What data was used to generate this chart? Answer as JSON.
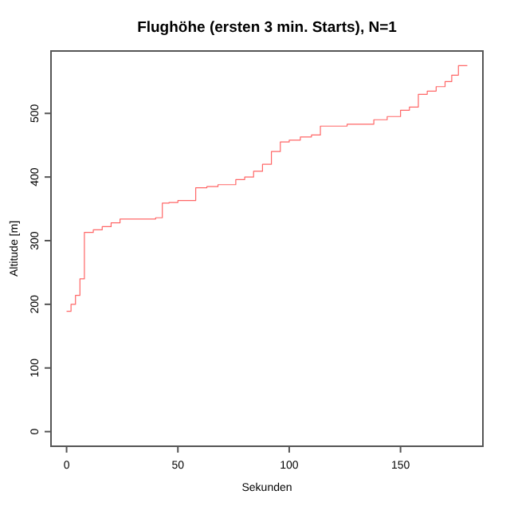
{
  "chart_data": {
    "type": "step",
    "title": "Flughöhe (ersten 3 min. Starts), N=1",
    "xlabel": "Sekunden",
    "ylabel": "Altitude [m]",
    "x": [
      0,
      2,
      4,
      6,
      8,
      12,
      16,
      20,
      24,
      30,
      36,
      40,
      43,
      46,
      50,
      54,
      58,
      63,
      68,
      72,
      76,
      80,
      84,
      88,
      92,
      96,
      100,
      105,
      110,
      114,
      120,
      126,
      132,
      138,
      144,
      150,
      154,
      158,
      162,
      166,
      170,
      173,
      176,
      180
    ],
    "series": [
      {
        "color": "#ff0000",
        "values": [
          189,
          200,
          214,
          240,
          313,
          317,
          322,
          328,
          334,
          334,
          334,
          336,
          359,
          360,
          363,
          363,
          383,
          385,
          388,
          388,
          396,
          400,
          409,
          420,
          440,
          455,
          458,
          463,
          466,
          480,
          480,
          483,
          483,
          490,
          495,
          505,
          510,
          530,
          535,
          542,
          550,
          560,
          575,
          575
        ]
      }
    ],
    "xlim": [
      -7,
      187
    ],
    "ylim": [
      -23,
      598
    ],
    "xticks": [
      0,
      50,
      100,
      150
    ],
    "yticks": [
      0,
      100,
      200,
      300,
      400,
      500
    ],
    "grid": false
  }
}
